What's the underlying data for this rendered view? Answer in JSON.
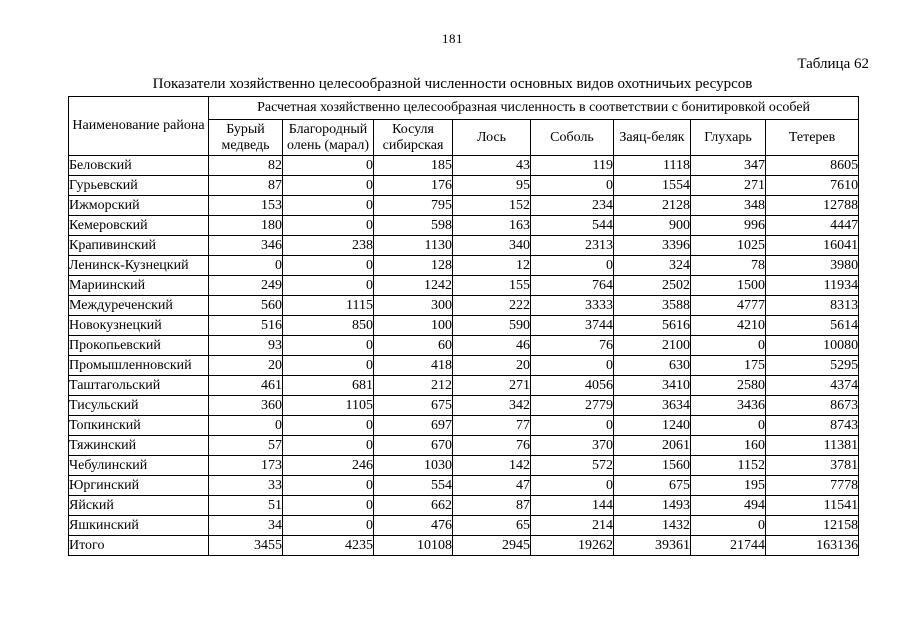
{
  "page": {
    "number": "181",
    "table_label": "Таблица 62",
    "title": "Показатели хозяйственно целесообразной численности основных видов охотничьих ресурсов"
  },
  "table": {
    "corner_header": "Наименование района",
    "group_header": "Расчетная хозяйственно целесообразная численность в соответствии с бонитировкой особей",
    "columns": [
      "Бурый медведь",
      "Благородный олень (марал)",
      "Косуля сибирская",
      "Лось",
      "Соболь",
      "Заяц-беляк",
      "Глухарь",
      "Тетерев"
    ],
    "rows": [
      {
        "district": "Беловский",
        "values": [
          82,
          0,
          185,
          43,
          119,
          1118,
          347,
          8605
        ]
      },
      {
        "district": "Гурьевский",
        "values": [
          87,
          0,
          176,
          95,
          0,
          1554,
          271,
          7610
        ]
      },
      {
        "district": "Ижморский",
        "values": [
          153,
          0,
          795,
          152,
          234,
          2128,
          348,
          12788
        ]
      },
      {
        "district": "Кемеровский",
        "values": [
          180,
          0,
          598,
          163,
          544,
          900,
          996,
          4447
        ]
      },
      {
        "district": "Крапивинский",
        "values": [
          346,
          238,
          1130,
          340,
          2313,
          3396,
          1025,
          16041
        ]
      },
      {
        "district": "Ленинск-Кузнецкий",
        "values": [
          0,
          0,
          128,
          12,
          0,
          324,
          78,
          3980
        ]
      },
      {
        "district": "Мариинский",
        "values": [
          249,
          0,
          1242,
          155,
          764,
          2502,
          1500,
          11934
        ]
      },
      {
        "district": "Междуреченский",
        "values": [
          560,
          1115,
          300,
          222,
          3333,
          3588,
          4777,
          8313
        ]
      },
      {
        "district": "Новокузнецкий",
        "values": [
          516,
          850,
          100,
          590,
          3744,
          5616,
          4210,
          5614
        ]
      },
      {
        "district": "Прокопьевский",
        "values": [
          93,
          0,
          60,
          46,
          76,
          2100,
          0,
          10080
        ]
      },
      {
        "district": "Промышленновский",
        "values": [
          20,
          0,
          418,
          20,
          0,
          630,
          175,
          5295
        ]
      },
      {
        "district": "Таштагольский",
        "values": [
          461,
          681,
          212,
          271,
          4056,
          3410,
          2580,
          4374
        ]
      },
      {
        "district": "Тисульский",
        "values": [
          360,
          1105,
          675,
          342,
          2779,
          3634,
          3436,
          8673
        ]
      },
      {
        "district": "Топкинский",
        "values": [
          0,
          0,
          697,
          77,
          0,
          1240,
          0,
          8743
        ]
      },
      {
        "district": "Тяжинский",
        "values": [
          57,
          0,
          670,
          76,
          370,
          2061,
          160,
          11381
        ]
      },
      {
        "district": "Чебулинский",
        "values": [
          173,
          246,
          1030,
          142,
          572,
          1560,
          1152,
          3781
        ]
      },
      {
        "district": "Юргинский",
        "values": [
          33,
          0,
          554,
          47,
          0,
          675,
          195,
          7778
        ]
      },
      {
        "district": "Яйский",
        "values": [
          51,
          0,
          662,
          87,
          144,
          1493,
          494,
          11541
        ]
      },
      {
        "district": "Яшкинский",
        "values": [
          34,
          0,
          476,
          65,
          214,
          1432,
          0,
          12158
        ]
      },
      {
        "district": "Итого",
        "values": [
          3455,
          4235,
          10108,
          2945,
          19262,
          39361,
          21744,
          163136
        ]
      }
    ]
  }
}
